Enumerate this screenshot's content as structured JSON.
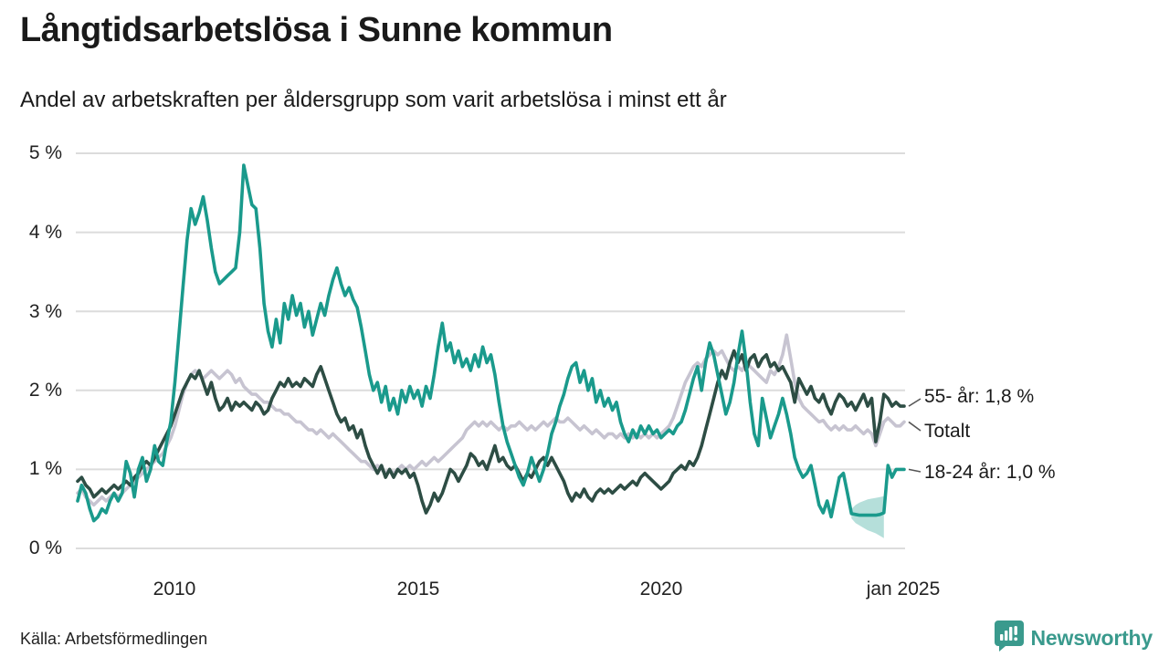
{
  "header": {
    "title": "Långtidsarbetslösa i Sunne kommun",
    "subtitle": "Andel av arbetskraften per åldersgrupp som varit arbetslösa i minst ett år"
  },
  "footer": {
    "source": "Källa: Arbetsförmedlingen",
    "brand": "Newsworthy"
  },
  "colors": {
    "series_18_24": "#1a9a8c",
    "series_55": "#2d4d44",
    "series_total": "#c7c4d1",
    "gridline": "#dcdcdc",
    "band_fill": "#1a9a8c",
    "connector": "#555555",
    "brand_teal": "#3a9a8d"
  },
  "chart_data": {
    "type": "line",
    "title": "Långtidsarbetslösa i Sunne kommun",
    "subtitle": "Andel av arbetskraften per åldersgrupp som varit arbetslösa i minst ett år",
    "unit": "%",
    "x_start": "2008-01",
    "x_end": "2025-01",
    "x_step_months": 1,
    "ylim": [
      0,
      5
    ],
    "grid": "horizontal",
    "legend_position": "right-edge-labels",
    "y_ticks": [
      {
        "label": "5 %",
        "value": 5
      },
      {
        "label": "4 %",
        "value": 4
      },
      {
        "label": "3 %",
        "value": 3
      },
      {
        "label": "2 %",
        "value": 2
      },
      {
        "label": "1 %",
        "value": 1
      },
      {
        "label": "0 %",
        "value": 0
      }
    ],
    "x_ticks": [
      {
        "label": "2010",
        "year": 2010
      },
      {
        "label": "2015",
        "year": 2015
      },
      {
        "label": "2020",
        "year": 2020
      },
      {
        "label": "jan 2025",
        "year": 2025
      }
    ],
    "right_labels": [
      {
        "text": "55- år: 1,8 %",
        "series_index": 1,
        "value": 1.8
      },
      {
        "text": "Totalt",
        "series_index": 2,
        "value": 1.6
      },
      {
        "text": "18-24 år: 1,0 %",
        "series_index": 0,
        "value": 1.0
      }
    ],
    "series": [
      {
        "name": "18-24 år",
        "color": "#1a9a8c",
        "end_value_label": "1,0 %",
        "values": [
          0.6,
          0.8,
          0.7,
          0.5,
          0.35,
          0.4,
          0.5,
          0.45,
          0.6,
          0.7,
          0.6,
          0.7,
          1.1,
          0.95,
          0.65,
          1.0,
          1.15,
          0.85,
          1.0,
          1.3,
          1.1,
          1.05,
          1.35,
          1.6,
          2.1,
          2.7,
          3.3,
          3.9,
          4.3,
          4.1,
          4.25,
          4.45,
          4.15,
          3.8,
          3.5,
          3.35,
          3.4,
          3.45,
          3.5,
          3.55,
          4.0,
          4.85,
          4.6,
          4.35,
          4.3,
          3.8,
          3.1,
          2.75,
          2.55,
          2.9,
          2.6,
          3.1,
          2.9,
          3.2,
          2.95,
          3.1,
          2.8,
          3.0,
          2.7,
          2.9,
          3.1,
          2.95,
          3.2,
          3.4,
          3.55,
          3.35,
          3.2,
          3.3,
          3.15,
          3.05,
          2.8,
          2.5,
          2.2,
          2.0,
          2.1,
          1.85,
          2.05,
          1.75,
          1.9,
          1.7,
          2.0,
          1.85,
          2.05,
          1.9,
          2.0,
          1.8,
          2.05,
          1.9,
          2.2,
          2.55,
          2.85,
          2.5,
          2.6,
          2.35,
          2.5,
          2.3,
          2.4,
          2.25,
          2.45,
          2.3,
          2.55,
          2.35,
          2.45,
          2.2,
          1.85,
          1.55,
          1.35,
          1.2,
          1.05,
          0.9,
          0.8,
          0.95,
          1.15,
          1.0,
          0.85,
          1.0,
          1.2,
          1.45,
          1.6,
          1.8,
          1.95,
          2.15,
          2.3,
          2.35,
          2.1,
          2.25,
          2.0,
          2.15,
          1.85,
          2.0,
          1.8,
          1.9,
          1.75,
          1.85,
          1.6,
          1.45,
          1.35,
          1.5,
          1.4,
          1.55,
          1.45,
          1.55,
          1.45,
          1.5,
          1.4,
          1.45,
          1.5,
          1.45,
          1.55,
          1.6,
          1.75,
          1.95,
          2.15,
          2.3,
          2.0,
          2.35,
          2.6,
          2.45,
          2.2,
          1.95,
          1.7,
          1.85,
          2.1,
          2.45,
          2.75,
          2.35,
          1.85,
          1.45,
          1.3,
          1.9,
          1.65,
          1.4,
          1.55,
          1.7,
          1.9,
          1.7,
          1.45,
          1.15,
          1.0,
          0.9,
          0.95,
          1.05,
          0.8,
          0.55,
          0.45,
          0.6,
          0.4,
          0.65,
          0.9,
          0.95,
          0.7,
          0.44,
          0.43,
          0.42,
          0.42,
          0.42,
          0.42,
          0.42,
          0.43,
          0.45,
          1.05,
          0.9,
          1.0,
          1.0,
          1.0
        ]
      },
      {
        "name": "55- år",
        "color": "#2d4d44",
        "end_value_label": "1,8 %",
        "values": [
          0.85,
          0.9,
          0.8,
          0.75,
          0.65,
          0.7,
          0.75,
          0.7,
          0.75,
          0.8,
          0.75,
          0.8,
          0.85,
          0.8,
          0.9,
          0.95,
          1.05,
          1.1,
          1.05,
          1.15,
          1.25,
          1.35,
          1.45,
          1.55,
          1.7,
          1.85,
          2.0,
          2.1,
          2.2,
          2.15,
          2.25,
          2.1,
          1.95,
          2.1,
          1.9,
          1.75,
          1.8,
          1.9,
          1.75,
          1.85,
          1.8,
          1.85,
          1.8,
          1.75,
          1.85,
          1.8,
          1.7,
          1.75,
          1.9,
          2.0,
          2.1,
          2.05,
          2.15,
          2.05,
          2.1,
          2.05,
          2.15,
          2.1,
          2.05,
          2.2,
          2.3,
          2.15,
          2.0,
          1.85,
          1.7,
          1.6,
          1.65,
          1.5,
          1.55,
          1.4,
          1.5,
          1.3,
          1.15,
          1.05,
          0.95,
          1.05,
          0.9,
          1.0,
          0.9,
          1.0,
          0.95,
          1.0,
          0.9,
          0.95,
          0.8,
          0.6,
          0.45,
          0.55,
          0.7,
          0.6,
          0.7,
          0.85,
          1.0,
          0.95,
          0.85,
          0.95,
          1.05,
          1.2,
          1.15,
          1.05,
          1.1,
          1.0,
          1.15,
          1.3,
          1.1,
          1.15,
          1.05,
          1.0,
          1.05,
          0.95,
          0.85,
          0.95,
          0.9,
          1.0,
          1.1,
          1.15,
          1.05,
          1.15,
          1.05,
          0.95,
          0.85,
          0.7,
          0.6,
          0.7,
          0.65,
          0.75,
          0.65,
          0.6,
          0.7,
          0.75,
          0.7,
          0.75,
          0.7,
          0.75,
          0.8,
          0.75,
          0.8,
          0.85,
          0.8,
          0.9,
          0.95,
          0.9,
          0.85,
          0.8,
          0.75,
          0.8,
          0.85,
          0.95,
          1.0,
          1.05,
          1.0,
          1.1,
          1.05,
          1.15,
          1.3,
          1.5,
          1.7,
          1.9,
          2.1,
          2.25,
          2.15,
          2.35,
          2.5,
          2.35,
          2.45,
          2.25,
          2.4,
          2.45,
          2.3,
          2.4,
          2.45,
          2.3,
          2.35,
          2.25,
          2.3,
          2.2,
          2.1,
          1.85,
          2.15,
          2.05,
          1.95,
          2.05,
          1.9,
          1.85,
          1.95,
          1.8,
          1.7,
          1.85,
          1.95,
          1.9,
          1.8,
          1.85,
          1.75,
          1.85,
          1.95,
          1.8,
          1.9,
          1.35,
          1.6,
          1.95,
          1.9,
          1.8,
          1.85,
          1.8,
          1.8
        ]
      },
      {
        "name": "Totalt",
        "color": "#c7c4d1",
        "end_value_label": "",
        "values": [
          0.7,
          0.75,
          0.65,
          0.6,
          0.55,
          0.6,
          0.65,
          0.6,
          0.65,
          0.7,
          0.65,
          0.7,
          0.75,
          0.8,
          0.85,
          0.9,
          0.95,
          1.0,
          1.05,
          1.1,
          1.15,
          1.2,
          1.3,
          1.4,
          1.55,
          1.75,
          1.95,
          2.1,
          2.2,
          2.25,
          2.2,
          2.15,
          2.2,
          2.25,
          2.2,
          2.15,
          2.2,
          2.25,
          2.2,
          2.1,
          2.15,
          2.05,
          2.0,
          1.95,
          1.95,
          1.9,
          1.85,
          1.85,
          1.8,
          1.75,
          1.75,
          1.7,
          1.7,
          1.65,
          1.6,
          1.6,
          1.55,
          1.5,
          1.5,
          1.45,
          1.5,
          1.45,
          1.4,
          1.45,
          1.4,
          1.35,
          1.3,
          1.25,
          1.2,
          1.15,
          1.1,
          1.1,
          1.05,
          1.0,
          1.05,
          1.0,
          0.95,
          1.0,
          0.95,
          1.0,
          1.05,
          1.0,
          1.05,
          1.0,
          1.05,
          1.1,
          1.05,
          1.1,
          1.15,
          1.1,
          1.15,
          1.2,
          1.25,
          1.3,
          1.35,
          1.4,
          1.5,
          1.55,
          1.6,
          1.55,
          1.6,
          1.55,
          1.6,
          1.55,
          1.5,
          1.55,
          1.5,
          1.55,
          1.55,
          1.6,
          1.55,
          1.5,
          1.55,
          1.5,
          1.55,
          1.6,
          1.55,
          1.6,
          1.65,
          1.6,
          1.6,
          1.65,
          1.6,
          1.55,
          1.5,
          1.55,
          1.5,
          1.45,
          1.5,
          1.45,
          1.4,
          1.45,
          1.45,
          1.4,
          1.45,
          1.4,
          1.45,
          1.4,
          1.45,
          1.4,
          1.45,
          1.4,
          1.45,
          1.4,
          1.45,
          1.5,
          1.55,
          1.65,
          1.8,
          1.95,
          2.1,
          2.2,
          2.3,
          2.35,
          2.3,
          2.4,
          2.45,
          2.5,
          2.45,
          2.5,
          2.4,
          2.3,
          2.25,
          2.3,
          2.25,
          2.35,
          2.3,
          2.25,
          2.2,
          2.15,
          2.1,
          2.25,
          2.2,
          2.3,
          2.45,
          2.7,
          2.4,
          2.1,
          1.9,
          1.8,
          1.75,
          1.7,
          1.65,
          1.6,
          1.62,
          1.55,
          1.5,
          1.55,
          1.5,
          1.55,
          1.5,
          1.5,
          1.55,
          1.5,
          1.45,
          1.5,
          1.45,
          1.3,
          1.45,
          1.6,
          1.65,
          1.6,
          1.55,
          1.55,
          1.6
        ]
      }
    ],
    "uncertainty_band": {
      "series": "18-24 år",
      "start_index": 191,
      "upper": [
        0.5,
        0.55,
        0.58,
        0.6,
        0.62,
        0.63,
        0.64,
        0.65,
        0.66
      ],
      "lower": [
        0.38,
        0.32,
        0.29,
        0.26,
        0.23,
        0.21,
        0.19,
        0.16,
        0.13
      ],
      "fill": "#1a9a8c",
      "opacity": 0.32
    }
  }
}
